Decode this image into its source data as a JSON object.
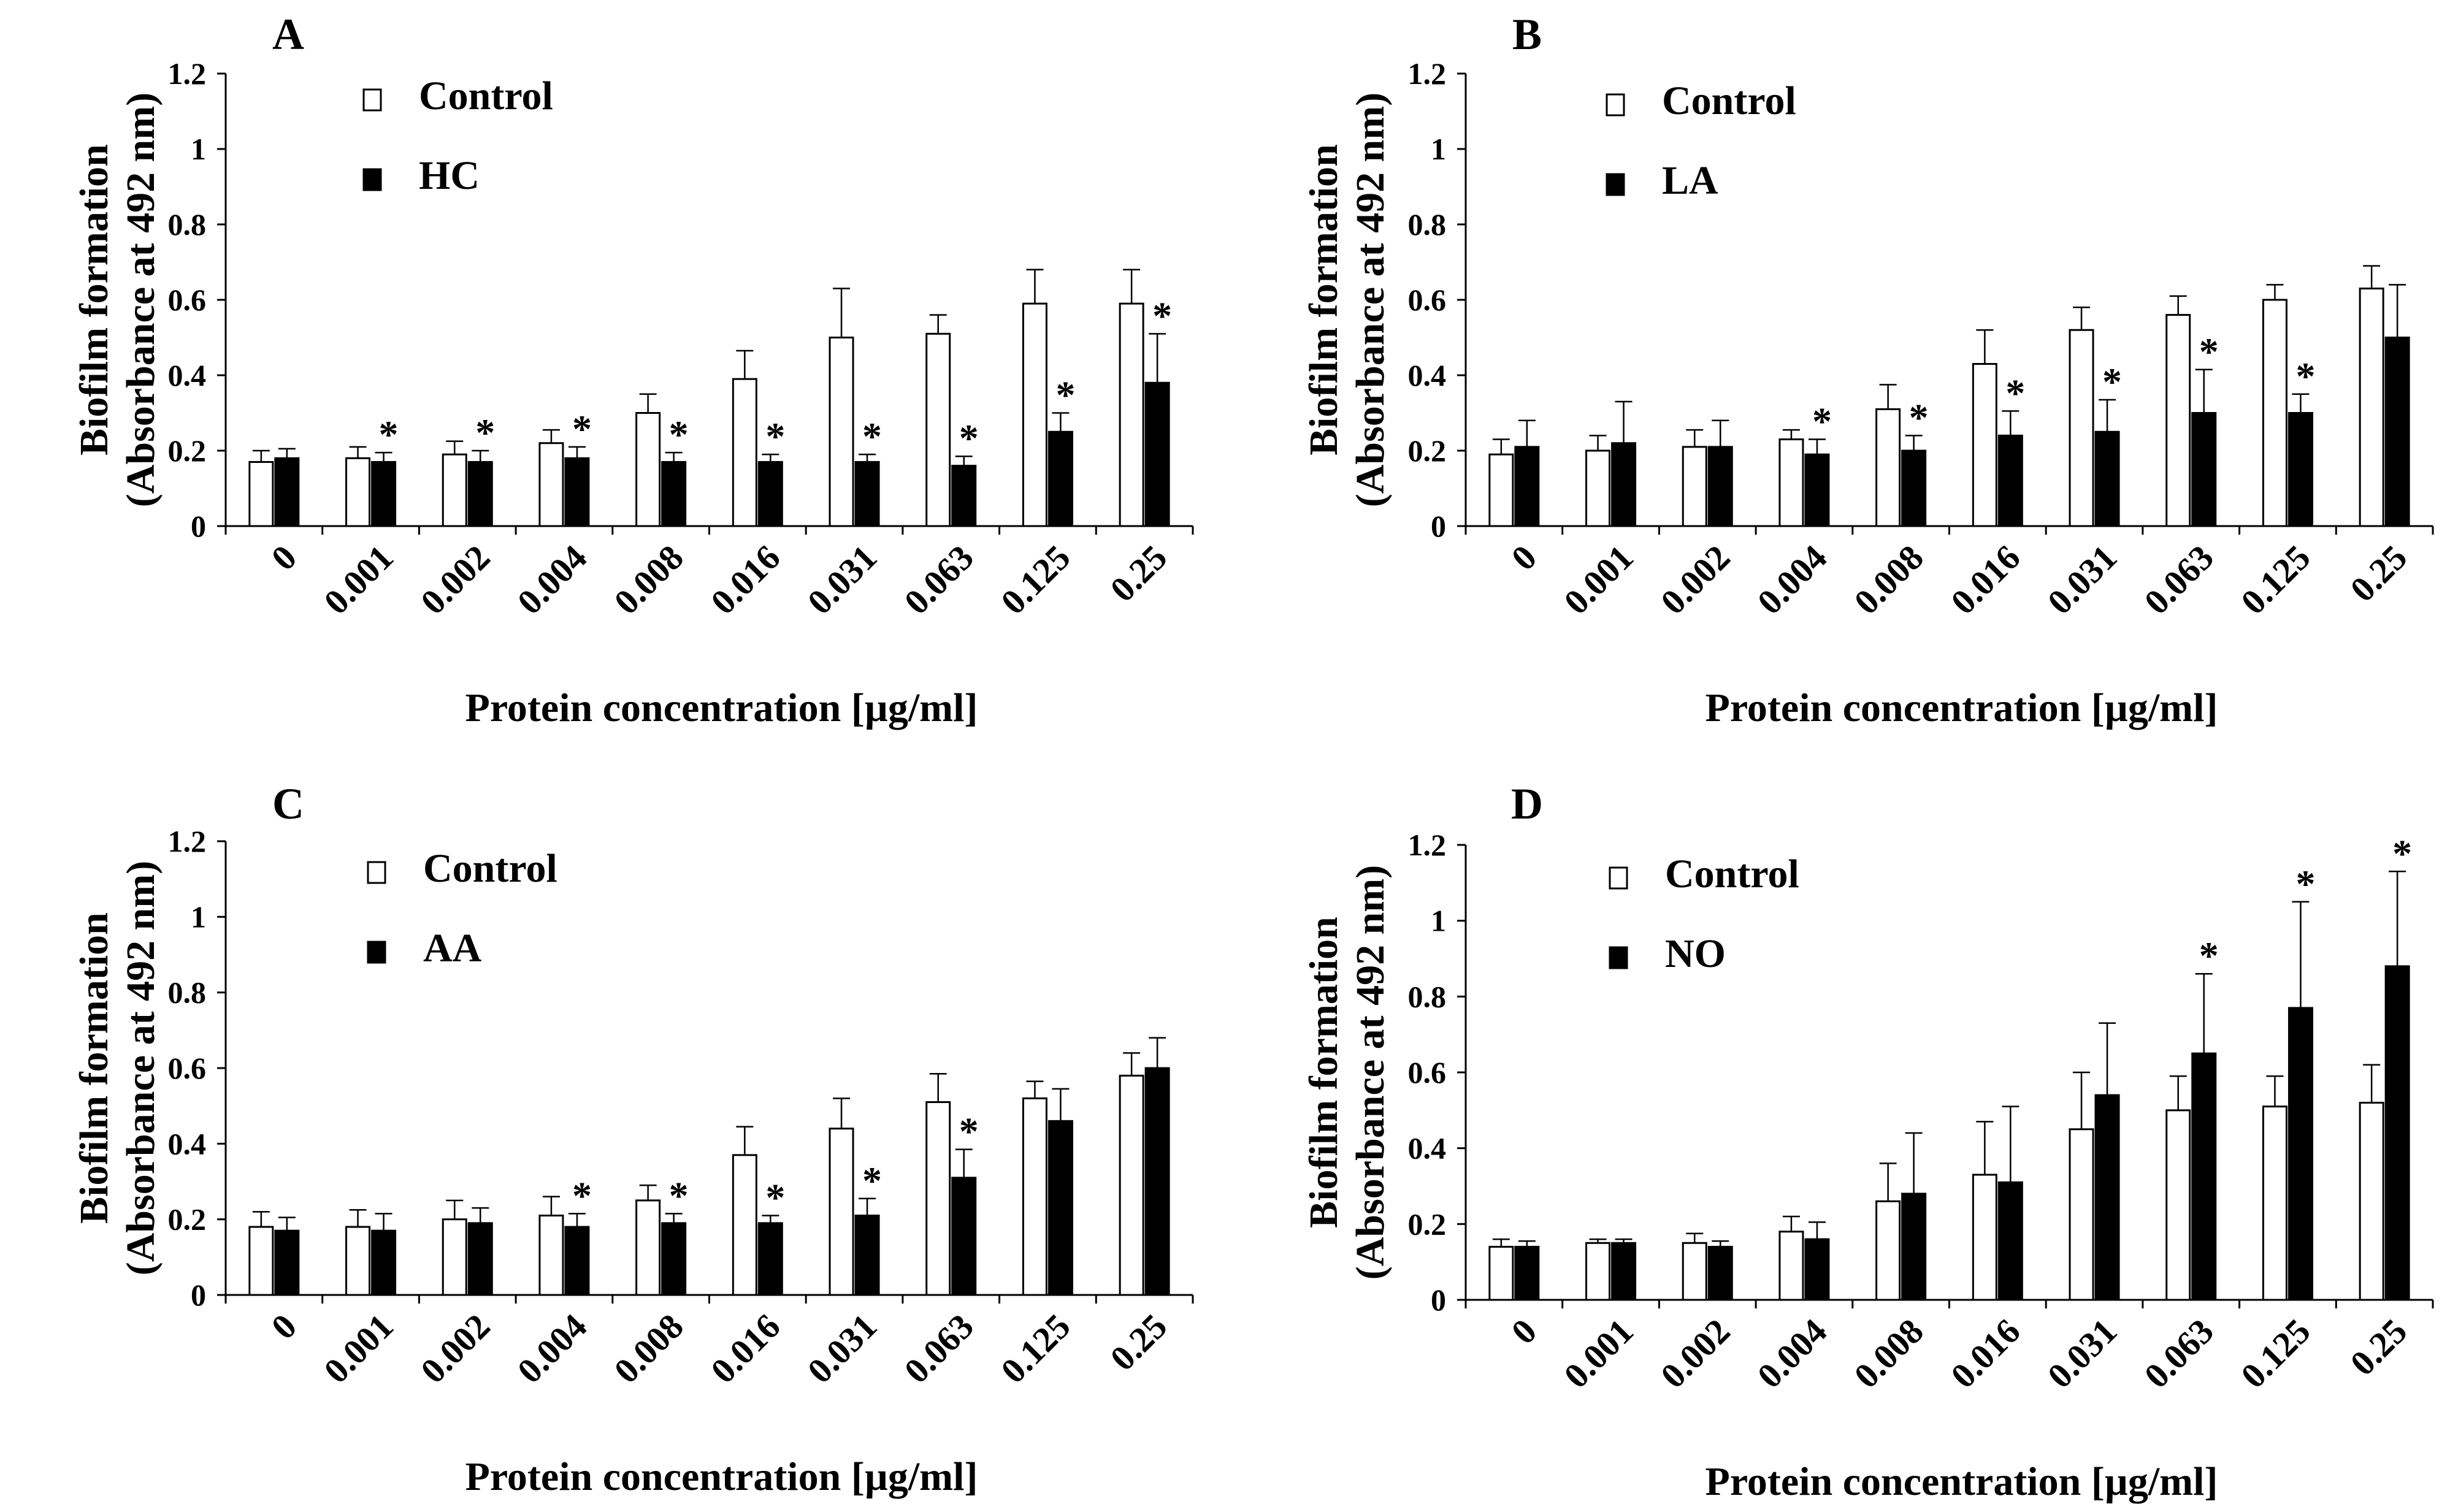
{
  "figure": {
    "legend_control_label": "Control"
  },
  "chart_data": [
    {
      "type": "bar",
      "panel": "A",
      "xlabel": "Protein concentration [µg/ml]",
      "ylabel": [
        "Biofilm  formation",
        "(Absorbance at 492 nm)"
      ],
      "ylim": [
        0,
        1.2
      ],
      "yticks": [
        "0",
        "0.2",
        "0.4",
        "0.6",
        "0.8",
        "1",
        "1.2"
      ],
      "categories": [
        "0",
        "0.001",
        "0.002",
        "0.004",
        "0.008",
        "0.016",
        "0.031",
        "0.063",
        "0.125",
        "0.25"
      ],
      "series": [
        {
          "name": "Control",
          "fill": "#ffffff",
          "values": [
            0.17,
            0.18,
            0.19,
            0.22,
            0.3,
            0.39,
            0.5,
            0.51,
            0.59,
            0.59
          ],
          "errors": [
            0.03,
            0.03,
            0.035,
            0.035,
            0.05,
            0.075,
            0.13,
            0.05,
            0.09,
            0.09
          ]
        },
        {
          "name": "HC",
          "fill": "#000000",
          "values": [
            0.18,
            0.17,
            0.17,
            0.18,
            0.17,
            0.17,
            0.17,
            0.16,
            0.25,
            0.38
          ],
          "errors": [
            0.025,
            0.025,
            0.03,
            0.03,
            0.025,
            0.02,
            0.02,
            0.025,
            0.05,
            0.13
          ]
        }
      ],
      "significant": [
        false,
        true,
        true,
        true,
        true,
        true,
        true,
        true,
        true,
        true
      ],
      "legend": [
        "Control",
        "HC"
      ]
    },
    {
      "type": "bar",
      "panel": "B",
      "xlabel": "Protein concentration [µg/ml]",
      "ylabel": [
        "Biofilm  formation",
        "(Absorbance at 492 nm)"
      ],
      "ylim": [
        0,
        1.2
      ],
      "yticks": [
        "0",
        "0.2",
        "0.4",
        "0.6",
        "0.8",
        "1",
        "1.2"
      ],
      "categories": [
        "0",
        "0.001",
        "0.002",
        "0.004",
        "0.008",
        "0.016",
        "0.031",
        "0.063",
        "0.125",
        "0.25"
      ],
      "series": [
        {
          "name": "Control",
          "fill": "#ffffff",
          "values": [
            0.19,
            0.2,
            0.21,
            0.23,
            0.31,
            0.43,
            0.52,
            0.56,
            0.6,
            0.63
          ],
          "errors": [
            0.04,
            0.04,
            0.045,
            0.025,
            0.065,
            0.09,
            0.06,
            0.05,
            0.04,
            0.06
          ]
        },
        {
          "name": "LA",
          "fill": "#000000",
          "values": [
            0.21,
            0.22,
            0.21,
            0.19,
            0.2,
            0.24,
            0.25,
            0.3,
            0.3,
            0.5
          ],
          "errors": [
            0.07,
            0.11,
            0.07,
            0.04,
            0.04,
            0.065,
            0.085,
            0.115,
            0.05,
            0.14
          ]
        }
      ],
      "significant": [
        false,
        false,
        false,
        true,
        true,
        true,
        true,
        true,
        true,
        false
      ],
      "legend": [
        "Control",
        "LA"
      ]
    },
    {
      "type": "bar",
      "panel": "C",
      "xlabel": "Protein concentration [µg/ml]",
      "ylabel": [
        "Biofilm  formation",
        "(Absorbance at 492 nm)"
      ],
      "ylim": [
        0,
        1.2
      ],
      "yticks": [
        "0",
        "0.2",
        "0.4",
        "0.6",
        "0.8",
        "1",
        "1.2"
      ],
      "categories": [
        "0",
        "0.001",
        "0.002",
        "0.004",
        "0.008",
        "0.016",
        "0.031",
        "0.063",
        "0.125",
        "0.25"
      ],
      "series": [
        {
          "name": "Control",
          "fill": "#ffffff",
          "values": [
            0.18,
            0.18,
            0.2,
            0.21,
            0.25,
            0.37,
            0.44,
            0.51,
            0.52,
            0.58
          ],
          "errors": [
            0.04,
            0.045,
            0.05,
            0.05,
            0.04,
            0.075,
            0.08,
            0.075,
            0.045,
            0.06
          ]
        },
        {
          "name": "AA",
          "fill": "#000000",
          "values": [
            0.17,
            0.17,
            0.19,
            0.18,
            0.19,
            0.19,
            0.21,
            0.31,
            0.46,
            0.6
          ],
          "errors": [
            0.035,
            0.045,
            0.04,
            0.035,
            0.025,
            0.02,
            0.045,
            0.075,
            0.085,
            0.08
          ]
        }
      ],
      "significant": [
        false,
        false,
        false,
        true,
        true,
        true,
        true,
        true,
        false,
        false
      ],
      "legend": [
        "Control",
        "AA"
      ]
    },
    {
      "type": "bar",
      "panel": "D",
      "xlabel": "Protein concentration [µg/ml]",
      "ylabel": [
        "Biofilm  formation",
        "(Absorbance at 492 nm)"
      ],
      "ylim": [
        0,
        1.2
      ],
      "yticks": [
        "0",
        "0.2",
        "0.4",
        "0.6",
        "0.8",
        "1",
        "1.2"
      ],
      "categories": [
        "0",
        "0.001",
        "0.002",
        "0.004",
        "0.008",
        "0.016",
        "0.031",
        "0.063",
        "0.125",
        "0.25"
      ],
      "series": [
        {
          "name": "Control",
          "fill": "#ffffff",
          "values": [
            0.14,
            0.15,
            0.15,
            0.18,
            0.26,
            0.33,
            0.45,
            0.5,
            0.51,
            0.52
          ],
          "errors": [
            0.02,
            0.01,
            0.025,
            0.04,
            0.1,
            0.14,
            0.15,
            0.09,
            0.08,
            0.1
          ]
        },
        {
          "name": "NO",
          "fill": "#000000",
          "values": [
            0.14,
            0.15,
            0.14,
            0.16,
            0.28,
            0.31,
            0.54,
            0.65,
            0.77,
            0.88
          ],
          "errors": [
            0.015,
            0.01,
            0.015,
            0.045,
            0.16,
            0.2,
            0.19,
            0.21,
            0.28,
            0.25
          ]
        }
      ],
      "significant": [
        false,
        false,
        false,
        false,
        false,
        false,
        false,
        true,
        true,
        true
      ],
      "legend": [
        "Control",
        "NO"
      ]
    }
  ]
}
